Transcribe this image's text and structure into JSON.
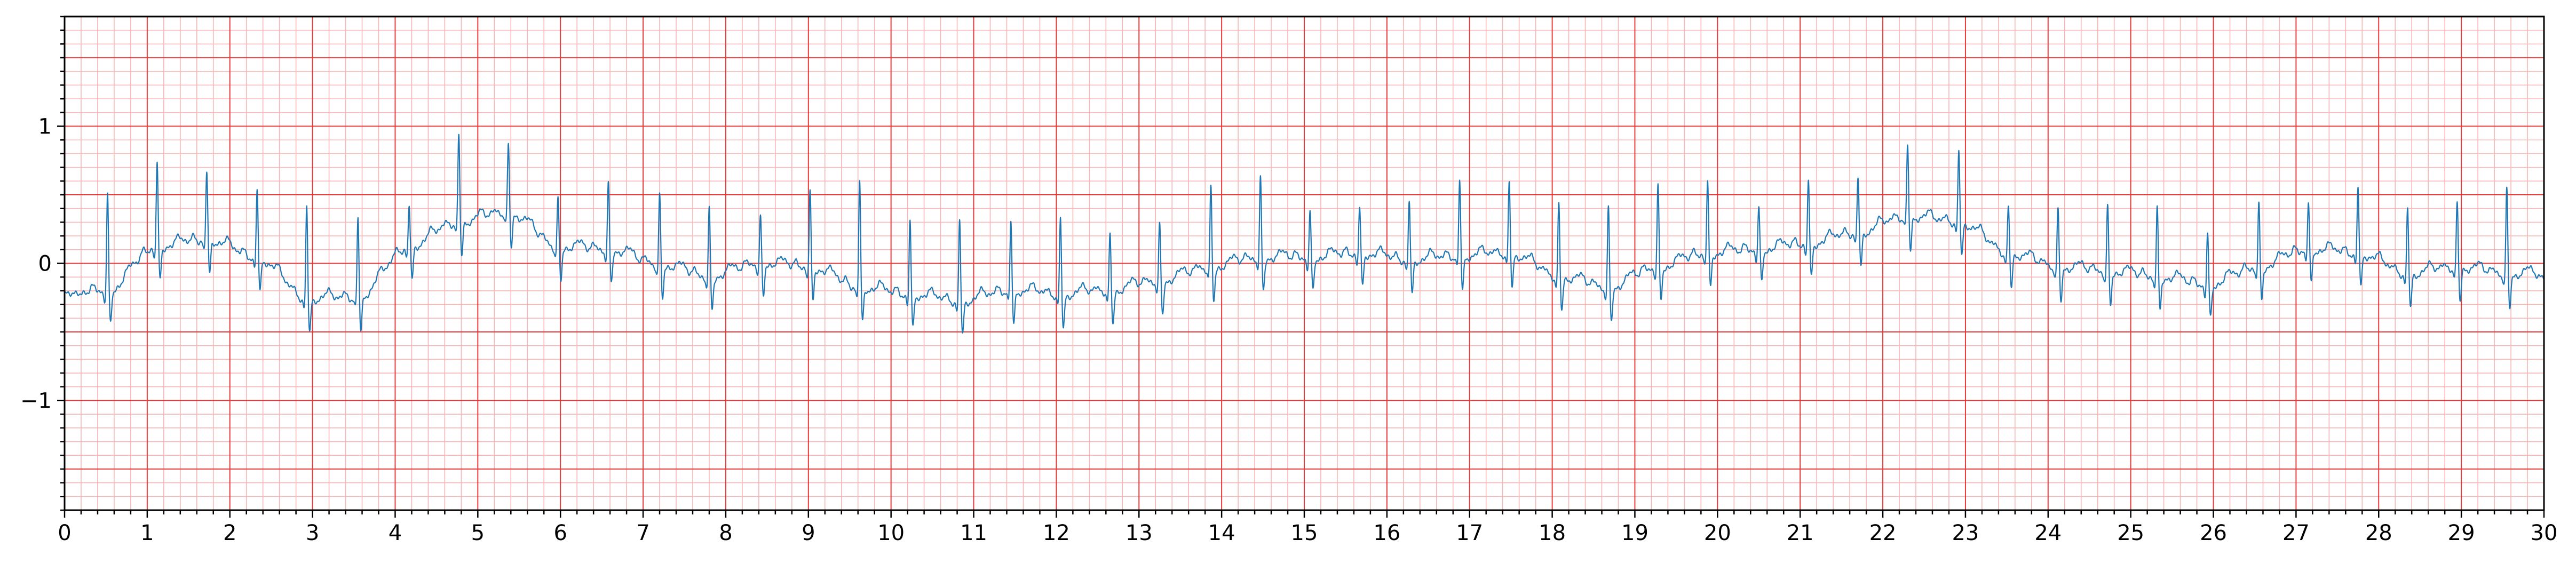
{
  "chart_data": {
    "type": "line",
    "title": "",
    "xlabel": "",
    "ylabel": "",
    "xlim": [
      0,
      30
    ],
    "ylim": [
      -1.8,
      1.8
    ],
    "x_ticks": [
      "0",
      "1",
      "2",
      "3",
      "4",
      "5",
      "6",
      "7",
      "8",
      "9",
      "10",
      "11",
      "12",
      "13",
      "14",
      "15",
      "16",
      "17",
      "18",
      "19",
      "20",
      "21",
      "22",
      "23",
      "24",
      "25",
      "26",
      "27",
      "28",
      "29",
      "30"
    ],
    "y_ticks": [
      {
        "value": 1,
        "label": "1"
      },
      {
        "value": 0,
        "label": "0"
      },
      {
        "value": -1,
        "label": "−1"
      }
    ],
    "grid": {
      "major_x_step": 1,
      "minor_x_step": 0.2,
      "major_y_step": 0.5,
      "minor_y_step": 0.1,
      "major_color": "#e8393a",
      "minor_color": "#f7b6b6"
    },
    "series": [
      {
        "color": "#1f77b4",
        "beats": [
          {
            "t": 0.52,
            "base": -0.22,
            "r": 0.52
          },
          {
            "t": 1.12,
            "base": 0.1,
            "r": 0.76
          },
          {
            "t": 1.72,
            "base": 0.15,
            "r": 0.69
          },
          {
            "t": 2.33,
            "base": 0.02,
            "r": 0.55
          },
          {
            "t": 2.93,
            "base": -0.28,
            "r": 0.43
          },
          {
            "t": 3.55,
            "base": -0.27,
            "r": 0.35
          },
          {
            "t": 4.17,
            "base": 0.1,
            "r": 0.44
          },
          {
            "t": 4.77,
            "base": 0.28,
            "r": 0.96
          },
          {
            "t": 5.37,
            "base": 0.35,
            "r": 0.88
          },
          {
            "t": 5.97,
            "base": 0.1,
            "r": 0.48
          },
          {
            "t": 6.58,
            "base": 0.08,
            "r": 0.59
          },
          {
            "t": 7.2,
            "base": -0.03,
            "r": 0.51
          },
          {
            "t": 7.8,
            "base": -0.12,
            "r": 0.41
          },
          {
            "t": 8.42,
            "base": -0.02,
            "r": 0.36
          },
          {
            "t": 9.02,
            "base": -0.05,
            "r": 0.55
          },
          {
            "t": 9.62,
            "base": -0.2,
            "r": 0.62
          },
          {
            "t": 10.23,
            "base": -0.25,
            "r": 0.33
          },
          {
            "t": 10.83,
            "base": -0.3,
            "r": 0.34
          },
          {
            "t": 11.45,
            "base": -0.22,
            "r": 0.32
          },
          {
            "t": 12.05,
            "base": -0.25,
            "r": 0.34
          },
          {
            "t": 12.65,
            "base": -0.22,
            "r": 0.22
          },
          {
            "t": 13.25,
            "base": -0.15,
            "r": 0.3
          },
          {
            "t": 13.87,
            "base": -0.05,
            "r": 0.56
          },
          {
            "t": 14.47,
            "base": 0.02,
            "r": 0.63
          },
          {
            "t": 15.07,
            "base": 0.02,
            "r": 0.39
          },
          {
            "t": 15.67,
            "base": 0.05,
            "r": 0.43
          },
          {
            "t": 16.27,
            "base": 0.0,
            "r": 0.48
          },
          {
            "t": 16.88,
            "base": 0.03,
            "r": 0.62
          },
          {
            "t": 17.48,
            "base": 0.05,
            "r": 0.6
          },
          {
            "t": 18.08,
            "base": -0.12,
            "r": 0.44
          },
          {
            "t": 18.68,
            "base": -0.2,
            "r": 0.42
          },
          {
            "t": 19.28,
            "base": -0.05,
            "r": 0.59
          },
          {
            "t": 19.88,
            "base": 0.05,
            "r": 0.62
          },
          {
            "t": 20.5,
            "base": 0.08,
            "r": 0.42
          },
          {
            "t": 21.1,
            "base": 0.12,
            "r": 0.63
          },
          {
            "t": 21.7,
            "base": 0.2,
            "r": 0.65
          },
          {
            "t": 22.3,
            "base": 0.32,
            "r": 0.88
          },
          {
            "t": 22.92,
            "base": 0.28,
            "r": 0.84
          },
          {
            "t": 23.52,
            "base": 0.05,
            "r": 0.43
          },
          {
            "t": 24.12,
            "base": -0.05,
            "r": 0.41
          },
          {
            "t": 24.72,
            "base": -0.08,
            "r": 0.43
          },
          {
            "t": 25.32,
            "base": -0.12,
            "r": 0.42
          },
          {
            "t": 25.93,
            "base": -0.18,
            "r": 0.23
          },
          {
            "t": 26.55,
            "base": -0.05,
            "r": 0.45
          },
          {
            "t": 27.15,
            "base": 0.08,
            "r": 0.45
          },
          {
            "t": 27.75,
            "base": 0.05,
            "r": 0.57
          },
          {
            "t": 28.35,
            "base": -0.1,
            "r": 0.42
          },
          {
            "t": 28.95,
            "base": -0.05,
            "r": 0.46
          },
          {
            "t": 29.55,
            "base": -0.1,
            "r": 0.56
          }
        ]
      }
    ]
  }
}
